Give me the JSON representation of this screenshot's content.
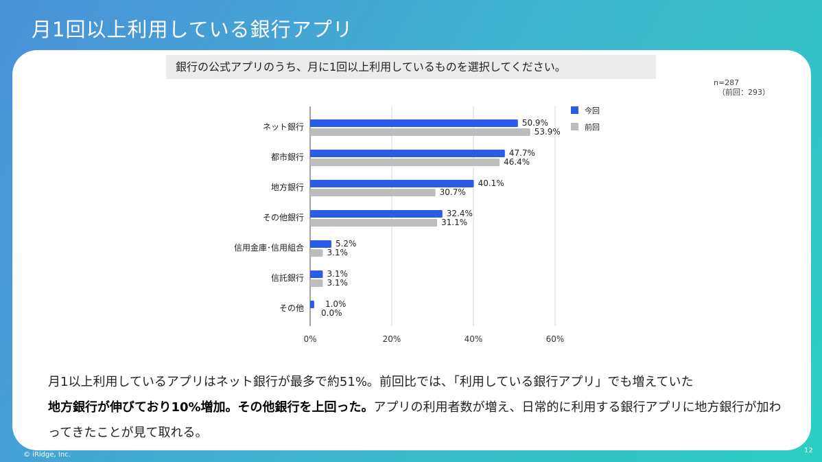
{
  "slide": {
    "title": "月1回以上利用している銀行アプリ",
    "question": "銀行の公式アプリのうち、月に1回以上利用しているものを選択してください。",
    "sample_n": "n=287",
    "sample_prev": "（前回：293）",
    "summary_1": "月1以上利用しているアプリはネット銀行が最多で約51%。前回比では、「利用している銀行アプリ」でも増えていた",
    "summary_bold": "地方銀行が伸びており10%増加。その他銀行を上回った。",
    "summary_2": "アプリの利用者数が増え、日常的に利用する銀行アプリに地方銀行が加わってきたことが見て取れる。",
    "copyright": "© iRidge, Inc.",
    "page_number": "12"
  },
  "chart_data": {
    "type": "bar",
    "orientation": "horizontal",
    "categories": [
      "ネット銀行",
      "都市銀行",
      "地方銀行",
      "その他銀行",
      "信用金庫･信用組合",
      "信託銀行",
      "その他"
    ],
    "series": [
      {
        "name": "今回",
        "values": [
          50.9,
          47.7,
          40.1,
          32.4,
          5.2,
          3.1,
          1.0
        ],
        "color": "#2b5ce6"
      },
      {
        "name": "前回",
        "values": [
          53.9,
          46.4,
          30.7,
          31.1,
          3.1,
          3.1,
          0.0
        ],
        "color": "#bdbdbd"
      }
    ],
    "value_labels": [
      [
        "50.9%",
        "47.7%",
        "40.1%",
        "32.4%",
        "5.2%",
        "3.1%",
        "1.0%"
      ],
      [
        "53.9%",
        "46.4%",
        "30.7%",
        "31.1%",
        "3.1%",
        "3.1%",
        "0.0%"
      ]
    ],
    "xticks": [
      "0%",
      "20%",
      "40%",
      "60%"
    ],
    "xtick_values": [
      0,
      20,
      40,
      60
    ],
    "xlim": [
      0,
      60
    ],
    "grid": true,
    "legend_position": "top-right"
  }
}
